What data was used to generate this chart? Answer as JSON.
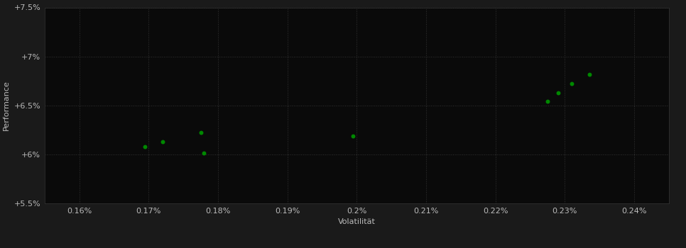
{
  "scatter_x": [
    0.1695,
    0.172,
    0.1775,
    0.178,
    0.1995,
    0.2275,
    0.229,
    0.231,
    0.2335
  ],
  "scatter_y": [
    6.08,
    6.13,
    6.22,
    6.01,
    6.185,
    6.54,
    6.63,
    6.72,
    6.82
  ],
  "dot_color": "#008800",
  "dot_size": 18,
  "background_color": "#1a1a1a",
  "plot_bg_color": "#0a0a0a",
  "grid_color": "#333333",
  "text_color": "#bbbbbb",
  "xlabel": "Volatilität",
  "ylabel": "Performance",
  "xlim": [
    0.155,
    0.245
  ],
  "ylim": [
    5.5,
    7.5
  ],
  "xticks": [
    0.16,
    0.17,
    0.18,
    0.19,
    0.2,
    0.21,
    0.22,
    0.23,
    0.24
  ],
  "yticks": [
    5.5,
    6.0,
    6.5,
    7.0,
    7.5
  ],
  "ytick_labels": [
    "+5.5%",
    "+6%",
    "+6.5%",
    "+7%",
    "+7.5%"
  ],
  "xtick_labels": [
    "0.16%",
    "0.17%",
    "0.18%",
    "0.19%",
    "0.2%",
    "0.21%",
    "0.22%",
    "0.23%",
    "0.24%"
  ]
}
